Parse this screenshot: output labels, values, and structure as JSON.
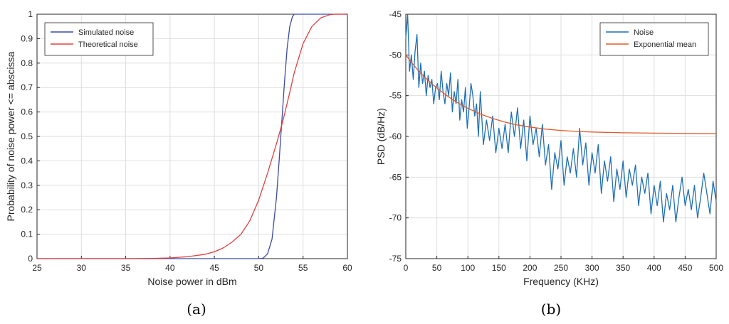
{
  "chart_data": [
    {
      "type": "line",
      "panel_label": "(a)",
      "xlabel": "Noise power in dBm",
      "ylabel": "Probability of noise power <= abscissa",
      "xlim": [
        25,
        60
      ],
      "ylim": [
        0,
        1
      ],
      "xticks": [
        25,
        30,
        35,
        40,
        45,
        50,
        55,
        60
      ],
      "yticks": [
        0,
        0.1,
        0.2,
        0.3,
        0.4,
        0.5,
        0.6,
        0.7,
        0.8,
        0.9,
        1
      ],
      "grid": true,
      "legend_position": "top-left",
      "series": [
        {
          "name": "Simulated noise",
          "color": "#3b4aa3",
          "x": [
            25,
            50,
            50.5,
            51,
            51.5,
            52,
            52.3,
            52.6,
            52.9,
            53.2,
            53.5,
            53.8,
            54,
            54.2,
            60
          ],
          "y": [
            0,
            0,
            0.002,
            0.02,
            0.08,
            0.25,
            0.4,
            0.56,
            0.72,
            0.86,
            0.95,
            0.99,
            1,
            1,
            1
          ]
        },
        {
          "name": "Theoretical noise",
          "color": "#e04040",
          "x": [
            25,
            35,
            38,
            40,
            42,
            44,
            45,
            46,
            47,
            48,
            49,
            50,
            51,
            52,
            52.7,
            53.5,
            54,
            55,
            56,
            57,
            58,
            58.5,
            60
          ],
          "y": [
            0,
            0,
            0.001,
            0.003,
            0.008,
            0.018,
            0.028,
            0.044,
            0.068,
            0.1,
            0.155,
            0.24,
            0.35,
            0.47,
            0.56,
            0.68,
            0.76,
            0.88,
            0.95,
            0.985,
            0.998,
            1,
            1
          ]
        }
      ]
    },
    {
      "type": "line",
      "panel_label": "(b)",
      "xlabel": "Frequency (KHz)",
      "ylabel": "PSD (dB/Hz)",
      "xlim": [
        0,
        500
      ],
      "ylim": [
        -75,
        -45
      ],
      "xticks": [
        0,
        50,
        100,
        150,
        200,
        250,
        300,
        350,
        400,
        450,
        500
      ],
      "yticks": [
        -75,
        -70,
        -65,
        -60,
        -55,
        -50,
        -45
      ],
      "grid": true,
      "legend_position": "top-right",
      "series": [
        {
          "name": "Noise",
          "color": "#1f6fb4",
          "x": [
            0,
            3,
            6,
            9,
            12,
            15,
            18,
            21,
            24,
            27,
            30,
            33,
            36,
            39,
            42,
            45,
            48,
            51,
            54,
            57,
            60,
            63,
            66,
            69,
            72,
            75,
            78,
            81,
            84,
            87,
            90,
            93,
            96,
            99,
            102,
            105,
            108,
            111,
            114,
            117,
            120,
            125,
            130,
            135,
            140,
            145,
            150,
            155,
            160,
            165,
            170,
            175,
            180,
            185,
            190,
            195,
            200,
            205,
            210,
            215,
            220,
            225,
            230,
            235,
            240,
            245,
            250,
            255,
            260,
            265,
            270,
            275,
            280,
            285,
            290,
            295,
            300,
            305,
            310,
            315,
            320,
            325,
            330,
            335,
            340,
            345,
            350,
            355,
            360,
            365,
            370,
            375,
            380,
            385,
            390,
            395,
            400,
            405,
            410,
            415,
            420,
            425,
            430,
            435,
            440,
            445,
            450,
            455,
            460,
            465,
            470,
            475,
            480,
            485,
            490,
            495,
            500
          ],
          "y": [
            -48,
            -44.5,
            -52,
            -50,
            -53,
            -49.5,
            -47.5,
            -54,
            -51,
            -53.5,
            -52,
            -55,
            -52.5,
            -54,
            -53,
            -56,
            -54,
            -53.5,
            -55.5,
            -52,
            -54.5,
            -56,
            -53.5,
            -55,
            -52.2,
            -57,
            -54.5,
            -56,
            -53,
            -58,
            -55.5,
            -57,
            -54,
            -59,
            -56.5,
            -53.5,
            -55,
            -57.5,
            -56,
            -60,
            -54.5,
            -61,
            -58,
            -60.5,
            -57.5,
            -62,
            -59,
            -61.5,
            -58.5,
            -62,
            -57,
            -60,
            -56.5,
            -61.5,
            -58,
            -63,
            -57.5,
            -61,
            -59,
            -62.5,
            -58.5,
            -63.5,
            -61,
            -66.5,
            -62,
            -64,
            -60.5,
            -66,
            -62.5,
            -64.5,
            -61.5,
            -65,
            -59,
            -63.5,
            -60.8,
            -66,
            -62,
            -64.5,
            -61,
            -67,
            -63,
            -65.5,
            -62.5,
            -68,
            -64,
            -66.5,
            -63,
            -67.5,
            -64,
            -66,
            -63.5,
            -68.5,
            -65,
            -67,
            -64.5,
            -69.5,
            -66,
            -68.5,
            -65.5,
            -70.5,
            -67,
            -69,
            -66,
            -70.5,
            -67.5,
            -65,
            -68.5,
            -66.5,
            -69,
            -66,
            -70,
            -67.5,
            -64.5,
            -67,
            -69.5,
            -65.5,
            -68
          ]
        },
        {
          "name": "Exponential mean",
          "color": "#e05a2b",
          "x": [
            0,
            10,
            20,
            30,
            40,
            50,
            60,
            70,
            80,
            90,
            100,
            120,
            140,
            160,
            180,
            200,
            225,
            250,
            275,
            300,
            350,
            400,
            450,
            500
          ],
          "y": [
            -50,
            -51,
            -51.9,
            -52.7,
            -53.4,
            -54.05,
            -54.65,
            -55.2,
            -55.7,
            -56.15,
            -56.55,
            -57.25,
            -57.8,
            -58.25,
            -58.6,
            -58.85,
            -59.1,
            -59.27,
            -59.38,
            -59.46,
            -59.55,
            -59.6,
            -59.63,
            -59.65
          ]
        }
      ]
    }
  ]
}
